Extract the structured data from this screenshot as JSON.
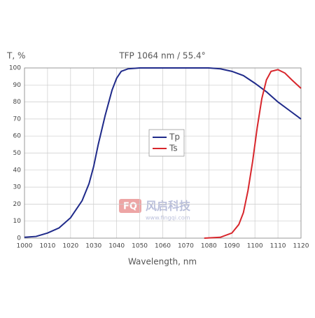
{
  "chart_data": {
    "type": "line",
    "title": "TFP 1064 nm / 55.4°",
    "y_label": "T, %",
    "x_label": "Wavelength, nm",
    "xlim": [
      1000,
      1120
    ],
    "ylim": [
      0,
      100
    ],
    "xticks": [
      1000,
      1010,
      1020,
      1030,
      1040,
      1050,
      1060,
      1070,
      1080,
      1090,
      1100,
      1110,
      1120
    ],
    "yticks": [
      0,
      10,
      20,
      30,
      40,
      50,
      60,
      70,
      80,
      90,
      100
    ],
    "grid": true,
    "legend": "center",
    "series": [
      {
        "name": "Tp",
        "color": "#1f2a8a",
        "x": [
          1000,
          1005,
          1010,
          1015,
          1020,
          1025,
          1028,
          1030,
          1032,
          1035,
          1038,
          1040,
          1042,
          1045,
          1050,
          1060,
          1070,
          1080,
          1085,
          1090,
          1095,
          1100,
          1105,
          1110,
          1115,
          1120
        ],
        "values": [
          0.5,
          1,
          3,
          6,
          12,
          22,
          32,
          42,
          55,
          72,
          87,
          94,
          98,
          99.5,
          100,
          100,
          100,
          100,
          99.5,
          98,
          95.5,
          91,
          86,
          80,
          75,
          70
        ]
      },
      {
        "name": "Ts",
        "color": "#d8262c",
        "x": [
          1078,
          1085,
          1090,
          1093,
          1095,
          1097,
          1099,
          1101,
          1103,
          1105,
          1107,
          1110,
          1113,
          1116,
          1120
        ],
        "values": [
          0,
          0.5,
          3,
          8,
          15,
          28,
          45,
          65,
          82,
          93,
          98,
          99,
          97,
          93,
          88
        ]
      }
    ],
    "watermark": {
      "logo": "FQ",
      "name": "风启科技",
      "url": "www.fingqi.com"
    }
  }
}
